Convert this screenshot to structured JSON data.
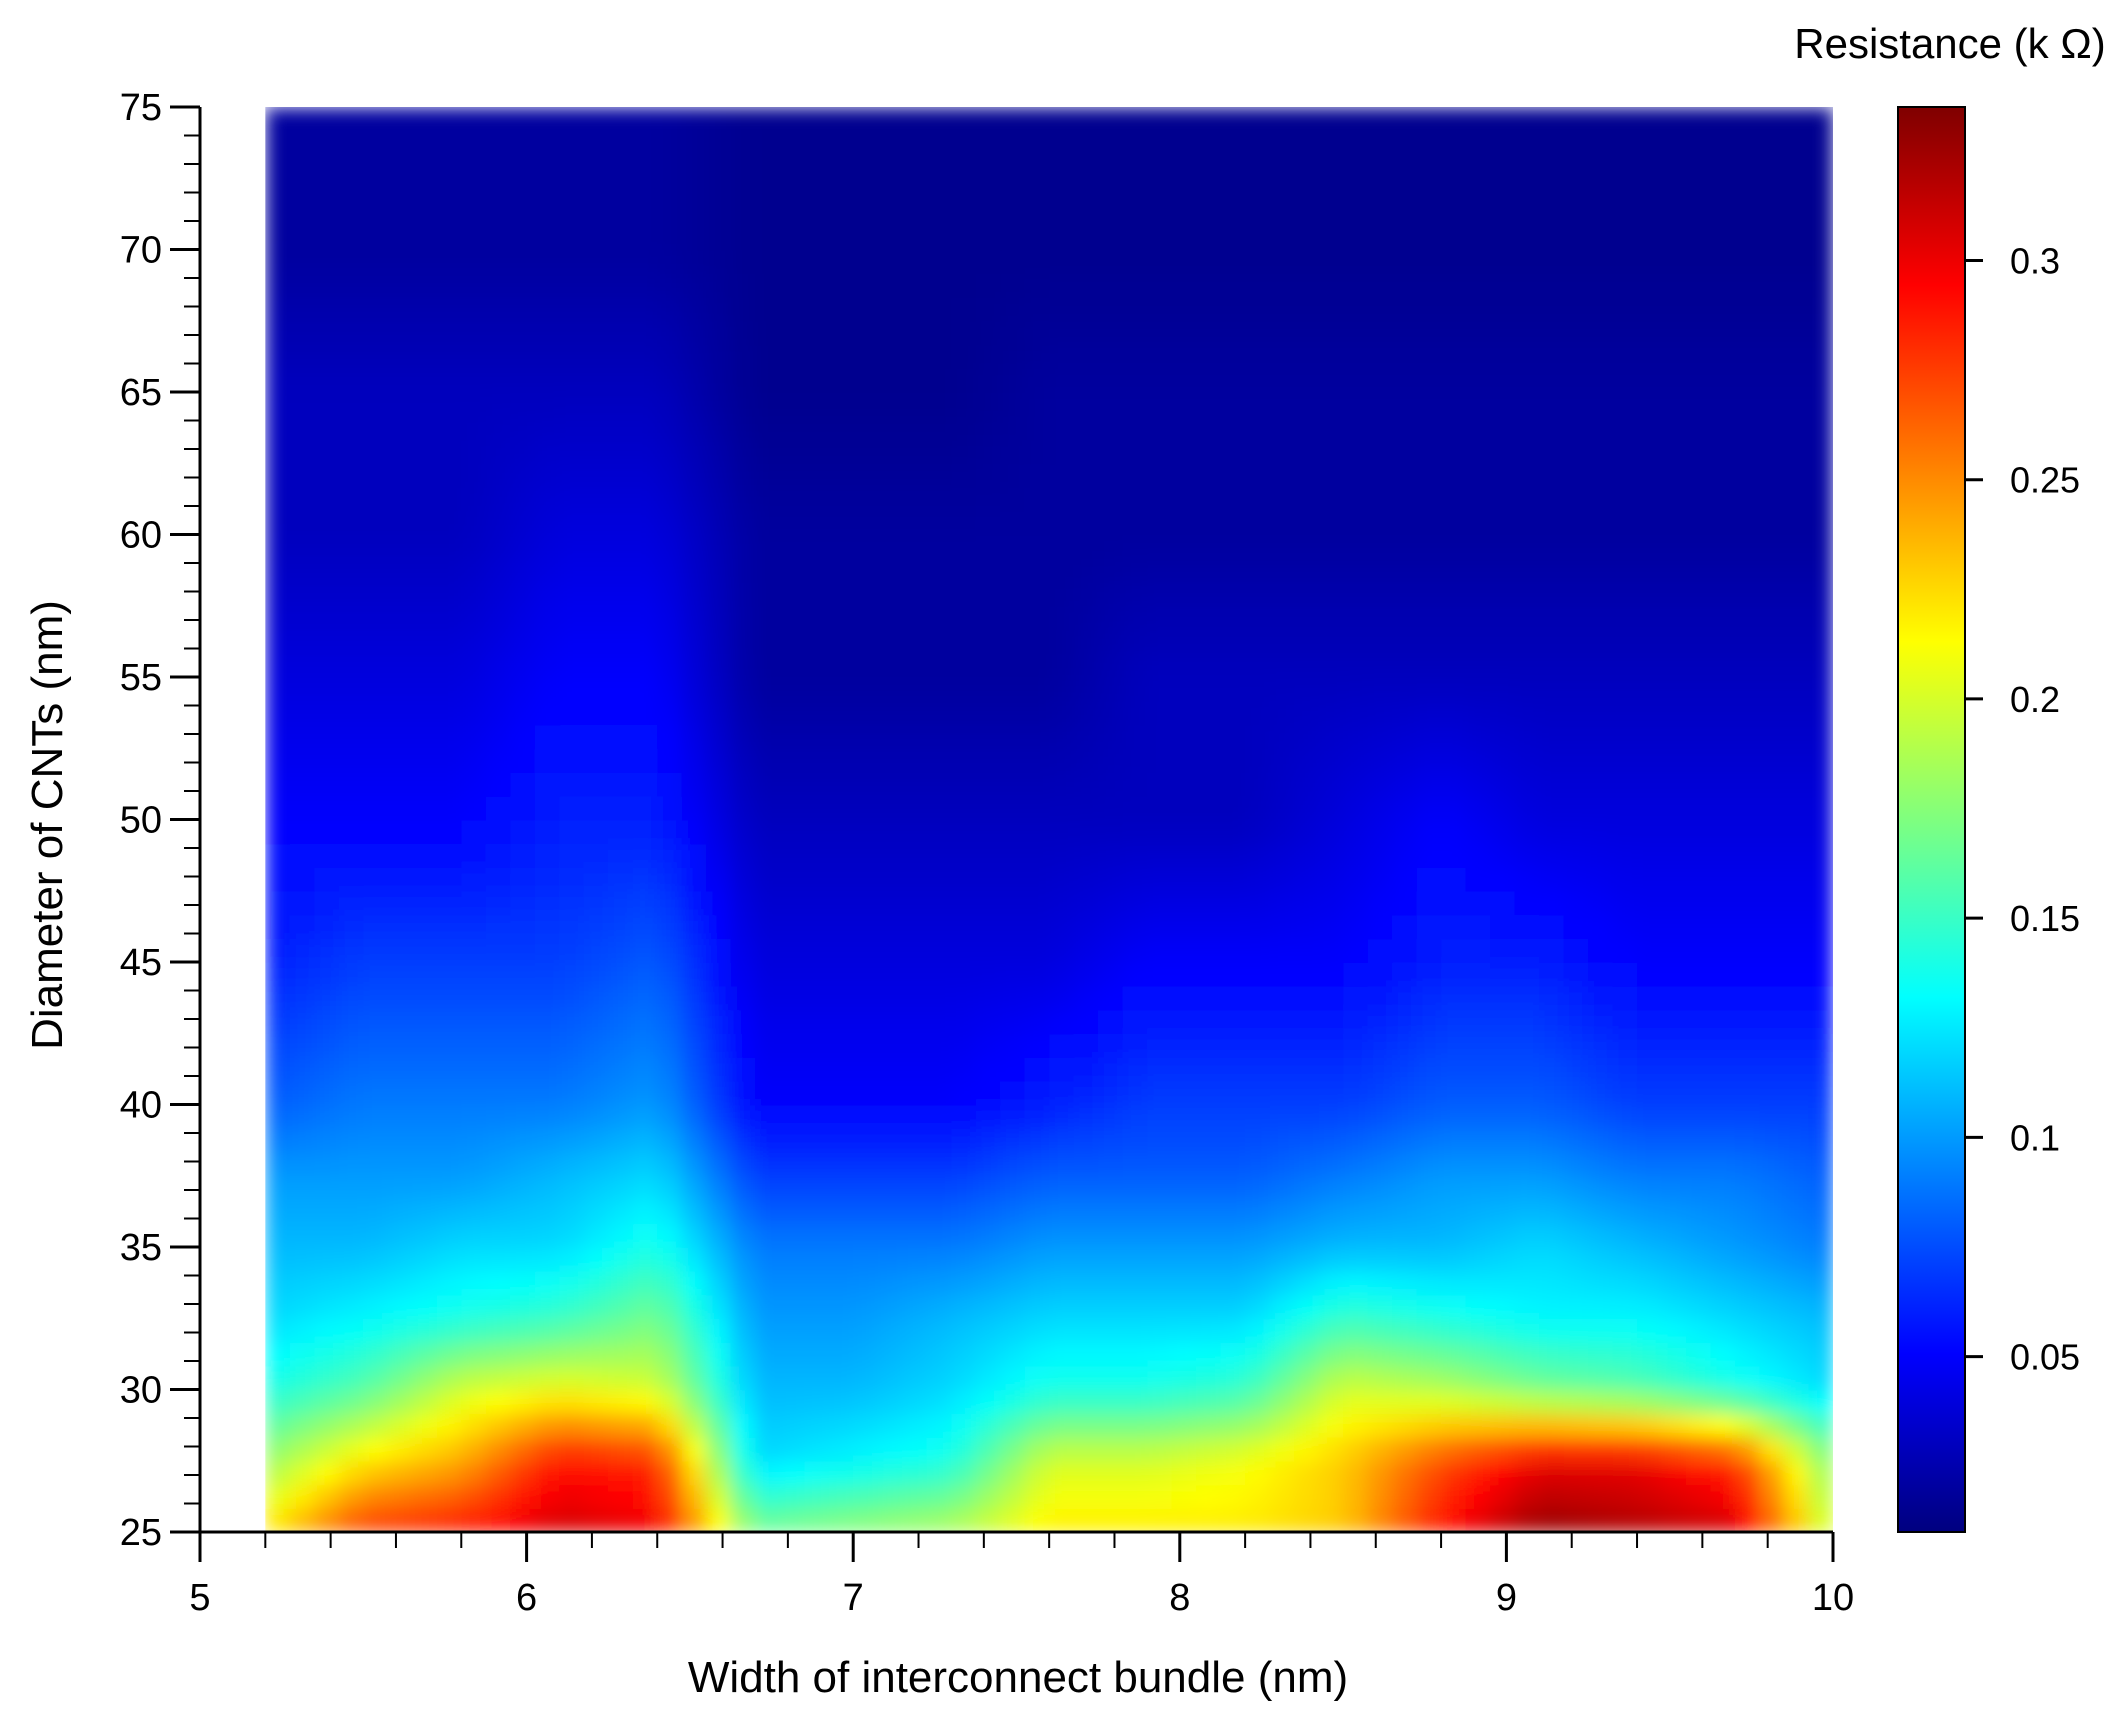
{
  "chart_data": {
    "type": "heatmap",
    "xlabel": "Width of interconnect bundle (nm)",
    "ylabel": "Diameter of CNTs (nm)",
    "colorbar_label": "Resistance (k Ω)",
    "xlim": [
      5,
      10
    ],
    "ylim": [
      25,
      75
    ],
    "x_ticks": [
      5,
      6,
      7,
      8,
      9,
      10
    ],
    "x_tick_labels": [
      "5",
      "6",
      "7",
      "8",
      "9",
      "10"
    ],
    "y_ticks": [
      25,
      30,
      35,
      40,
      45,
      50,
      55,
      60,
      65,
      70,
      75
    ],
    "y_tick_labels": [
      "25",
      "30",
      "35",
      "40",
      "45",
      "50",
      "55",
      "60",
      "65",
      "70",
      "75"
    ],
    "colorbar_range": [
      0.01,
      0.335
    ],
    "colorbar_ticks": [
      0.05,
      0.1,
      0.15,
      0.2,
      0.25,
      0.3
    ],
    "colorbar_tick_labels": [
      "0.05",
      "0.1",
      "0.15",
      "0.2",
      "0.25",
      "0.3"
    ],
    "colormap": [
      "#00007f",
      "#0000ff",
      "#007fff",
      "#00ffff",
      "#7fff7f",
      "#ffff00",
      "#ff7f00",
      "#ff0000",
      "#7f0000"
    ],
    "data_x_range": [
      5.2,
      10
    ],
    "x": [
      5.2,
      5.5,
      5.8,
      6.1,
      6.4,
      6.7,
      7.0,
      7.3,
      7.6,
      7.9,
      8.2,
      8.5,
      8.8,
      9.1,
      9.4,
      9.7,
      10.0
    ],
    "y": [
      25,
      27.5,
      30,
      32.5,
      35,
      37.5,
      40,
      45,
      50,
      55,
      60,
      65,
      70,
      75
    ],
    "z": [
      [
        0.22,
        0.28,
        0.29,
        0.31,
        0.3,
        0.17,
        0.18,
        0.19,
        0.22,
        0.22,
        0.22,
        0.23,
        0.29,
        0.33,
        0.32,
        0.31,
        0.19
      ],
      [
        0.18,
        0.22,
        0.24,
        0.29,
        0.28,
        0.12,
        0.13,
        0.14,
        0.2,
        0.2,
        0.21,
        0.23,
        0.27,
        0.3,
        0.3,
        0.28,
        0.17
      ],
      [
        0.14,
        0.16,
        0.2,
        0.21,
        0.2,
        0.11,
        0.11,
        0.12,
        0.14,
        0.14,
        0.15,
        0.2,
        0.19,
        0.17,
        0.16,
        0.14,
        0.12
      ],
      [
        0.12,
        0.13,
        0.14,
        0.15,
        0.17,
        0.1,
        0.1,
        0.11,
        0.12,
        0.12,
        0.12,
        0.15,
        0.14,
        0.13,
        0.13,
        0.12,
        0.11
      ],
      [
        0.11,
        0.11,
        0.12,
        0.12,
        0.14,
        0.09,
        0.09,
        0.09,
        0.1,
        0.1,
        0.1,
        0.11,
        0.11,
        0.12,
        0.11,
        0.1,
        0.09
      ],
      [
        0.1,
        0.1,
        0.1,
        0.11,
        0.12,
        0.07,
        0.07,
        0.07,
        0.08,
        0.08,
        0.08,
        0.09,
        0.1,
        0.1,
        0.09,
        0.09,
        0.08
      ],
      [
        0.08,
        0.09,
        0.09,
        0.09,
        0.1,
        0.05,
        0.05,
        0.05,
        0.06,
        0.07,
        0.07,
        0.07,
        0.08,
        0.08,
        0.07,
        0.07,
        0.07
      ],
      [
        0.06,
        0.07,
        0.07,
        0.07,
        0.08,
        0.04,
        0.04,
        0.04,
        0.04,
        0.05,
        0.05,
        0.05,
        0.06,
        0.06,
        0.05,
        0.05,
        0.05
      ],
      [
        0.05,
        0.05,
        0.05,
        0.06,
        0.06,
        0.03,
        0.03,
        0.03,
        0.03,
        0.03,
        0.03,
        0.04,
        0.05,
        0.04,
        0.04,
        0.04,
        0.04
      ],
      [
        0.04,
        0.04,
        0.04,
        0.05,
        0.05,
        0.02,
        0.02,
        0.02,
        0.02,
        0.03,
        0.03,
        0.03,
        0.03,
        0.03,
        0.03,
        0.03,
        0.03
      ],
      [
        0.03,
        0.03,
        0.03,
        0.04,
        0.04,
        0.02,
        0.02,
        0.02,
        0.02,
        0.02,
        0.02,
        0.02,
        0.02,
        0.02,
        0.02,
        0.02,
        0.02
      ],
      [
        0.03,
        0.03,
        0.03,
        0.03,
        0.03,
        0.015,
        0.015,
        0.015,
        0.02,
        0.02,
        0.02,
        0.02,
        0.02,
        0.02,
        0.02,
        0.02,
        0.02
      ],
      [
        0.02,
        0.02,
        0.02,
        0.02,
        0.02,
        0.015,
        0.015,
        0.015,
        0.015,
        0.015,
        0.015,
        0.015,
        0.015,
        0.015,
        0.015,
        0.015,
        0.015
      ],
      [
        0.02,
        0.02,
        0.02,
        0.02,
        0.02,
        0.015,
        0.015,
        0.015,
        0.015,
        0.015,
        0.015,
        0.015,
        0.015,
        0.015,
        0.015,
        0.015,
        0.015
      ]
    ]
  }
}
